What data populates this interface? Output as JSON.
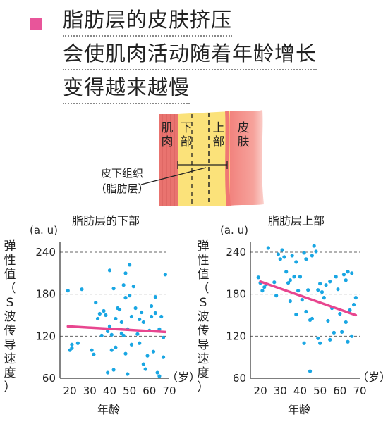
{
  "title": {
    "lines": [
      "脂肪层的皮肤挤压",
      "会使肌肉活动随着年龄增长",
      "变得越来越慢"
    ],
    "marker_color": "#e8559a"
  },
  "diagram": {
    "labels": {
      "muscle": "肌\n肉",
      "lower": "下\n部",
      "upper": "上\n部",
      "skin": "皮\n肤"
    },
    "callout": "皮下组织\n（脂肪层）",
    "colors": {
      "muscle": "#e9736f",
      "fat": "#fbe27a",
      "skin": "#f2837e"
    }
  },
  "chart_data": [
    {
      "type": "scatter",
      "title": "脂肪层的下部",
      "unit_label": "(a. u)",
      "ylabel": "弹性值（S波传导速度）",
      "xlabel": "年龄",
      "xunit": "（岁）",
      "xticks": [
        20,
        30,
        40,
        50,
        60,
        70
      ],
      "yticks": [
        60,
        120,
        180,
        240
      ],
      "xlim": [
        15,
        70
      ],
      "ylim": [
        60,
        250
      ],
      "grid": "horizontal-dashed",
      "point_color": "#19a6e3",
      "trend_color": "#e8468f",
      "trend": {
        "x": [
          19,
          68
        ],
        "y": [
          134,
          126
        ]
      },
      "points": [
        {
          "x": 19,
          "y": 185
        },
        {
          "x": 20,
          "y": 100
        },
        {
          "x": 21,
          "y": 108
        },
        {
          "x": 21,
          "y": 103
        },
        {
          "x": 24,
          "y": 110
        },
        {
          "x": 26,
          "y": 187
        },
        {
          "x": 31,
          "y": 100
        },
        {
          "x": 32,
          "y": 94
        },
        {
          "x": 33,
          "y": 168
        },
        {
          "x": 34,
          "y": 145
        },
        {
          "x": 35,
          "y": 152
        },
        {
          "x": 36,
          "y": 121
        },
        {
          "x": 37,
          "y": 156
        },
        {
          "x": 38,
          "y": 150
        },
        {
          "x": 39,
          "y": 127
        },
        {
          "x": 39,
          "y": 68
        },
        {
          "x": 40,
          "y": 214
        },
        {
          "x": 40,
          "y": 134
        },
        {
          "x": 41,
          "y": 122
        },
        {
          "x": 41,
          "y": 100
        },
        {
          "x": 42,
          "y": 188
        },
        {
          "x": 42,
          "y": 72
        },
        {
          "x": 43,
          "y": 145
        },
        {
          "x": 43,
          "y": 104
        },
        {
          "x": 44,
          "y": 160
        },
        {
          "x": 45,
          "y": 158
        },
        {
          "x": 46,
          "y": 140
        },
        {
          "x": 46,
          "y": 124
        },
        {
          "x": 47,
          "y": 193
        },
        {
          "x": 47,
          "y": 121
        },
        {
          "x": 48,
          "y": 210
        },
        {
          "x": 48,
          "y": 175
        },
        {
          "x": 48,
          "y": 95
        },
        {
          "x": 49,
          "y": 130
        },
        {
          "x": 49,
          "y": 66
        },
        {
          "x": 50,
          "y": 222
        },
        {
          "x": 50,
          "y": 178
        },
        {
          "x": 51,
          "y": 148
        },
        {
          "x": 51,
          "y": 108
        },
        {
          "x": 52,
          "y": 191
        },
        {
          "x": 53,
          "y": 160
        },
        {
          "x": 54,
          "y": 123
        },
        {
          "x": 55,
          "y": 144
        },
        {
          "x": 55,
          "y": 110
        },
        {
          "x": 56,
          "y": 154
        },
        {
          "x": 57,
          "y": 140
        },
        {
          "x": 57,
          "y": 80
        },
        {
          "x": 58,
          "y": 73
        },
        {
          "x": 59,
          "y": 92
        },
        {
          "x": 60,
          "y": 128
        },
        {
          "x": 61,
          "y": 163
        },
        {
          "x": 61,
          "y": 148
        },
        {
          "x": 62,
          "y": 98
        },
        {
          "x": 63,
          "y": 176
        },
        {
          "x": 63,
          "y": 153
        },
        {
          "x": 64,
          "y": 68
        },
        {
          "x": 65,
          "y": 130
        },
        {
          "x": 65,
          "y": 63
        },
        {
          "x": 66,
          "y": 148
        },
        {
          "x": 67,
          "y": 118
        },
        {
          "x": 67,
          "y": 90
        },
        {
          "x": 68,
          "y": 208
        }
      ]
    },
    {
      "type": "scatter",
      "title": "脂肪层上部",
      "unit_label": "(a. u)",
      "ylabel": "弹性值（S波传导速度）",
      "xlabel": "年龄",
      "xunit": "（岁）",
      "xticks": [
        20,
        30,
        40,
        50,
        60,
        70
      ],
      "yticks": [
        60,
        120,
        180,
        240
      ],
      "xlim": [
        15,
        70
      ],
      "ylim": [
        60,
        250
      ],
      "grid": "horizontal-dashed",
      "point_color": "#19a6e3",
      "trend_color": "#e8468f",
      "trend": {
        "x": [
          20,
          68
        ],
        "y": [
          198,
          150
        ]
      },
      "points": [
        {
          "x": 19,
          "y": 204
        },
        {
          "x": 20,
          "y": 196
        },
        {
          "x": 21,
          "y": 185
        },
        {
          "x": 22,
          "y": 190
        },
        {
          "x": 23,
          "y": 194
        },
        {
          "x": 24,
          "y": 246
        },
        {
          "x": 27,
          "y": 197
        },
        {
          "x": 28,
          "y": 178
        },
        {
          "x": 29,
          "y": 237
        },
        {
          "x": 30,
          "y": 230
        },
        {
          "x": 31,
          "y": 243
        },
        {
          "x": 32,
          "y": 233
        },
        {
          "x": 33,
          "y": 212
        },
        {
          "x": 34,
          "y": 196
        },
        {
          "x": 35,
          "y": 200
        },
        {
          "x": 35,
          "y": 170
        },
        {
          "x": 36,
          "y": 235
        },
        {
          "x": 37,
          "y": 205
        },
        {
          "x": 38,
          "y": 226
        },
        {
          "x": 38,
          "y": 151
        },
        {
          "x": 39,
          "y": 185
        },
        {
          "x": 40,
          "y": 205
        },
        {
          "x": 41,
          "y": 172
        },
        {
          "x": 42,
          "y": 239
        },
        {
          "x": 43,
          "y": 230
        },
        {
          "x": 43,
          "y": 155
        },
        {
          "x": 44,
          "y": 186
        },
        {
          "x": 45,
          "y": 143
        },
        {
          "x": 46,
          "y": 235
        },
        {
          "x": 46,
          "y": 145
        },
        {
          "x": 47,
          "y": 249
        },
        {
          "x": 48,
          "y": 241
        },
        {
          "x": 49,
          "y": 186
        },
        {
          "x": 49,
          "y": 117
        },
        {
          "x": 50,
          "y": 195
        },
        {
          "x": 50,
          "y": 110
        },
        {
          "x": 51,
          "y": 183
        },
        {
          "x": 52,
          "y": 175
        },
        {
          "x": 53,
          "y": 193
        },
        {
          "x": 54,
          "y": 142
        },
        {
          "x": 55,
          "y": 198
        },
        {
          "x": 55,
          "y": 115
        },
        {
          "x": 56,
          "y": 160
        },
        {
          "x": 57,
          "y": 125
        },
        {
          "x": 58,
          "y": 205
        },
        {
          "x": 59,
          "y": 187
        },
        {
          "x": 60,
          "y": 152
        },
        {
          "x": 61,
          "y": 126
        },
        {
          "x": 62,
          "y": 208
        },
        {
          "x": 63,
          "y": 200
        },
        {
          "x": 63,
          "y": 140
        },
        {
          "x": 64,
          "y": 212
        },
        {
          "x": 64,
          "y": 112
        },
        {
          "x": 65,
          "y": 157
        },
        {
          "x": 66,
          "y": 210
        },
        {
          "x": 66,
          "y": 120
        },
        {
          "x": 67,
          "y": 165
        },
        {
          "x": 68,
          "y": 175
        },
        {
          "x": 45,
          "y": 70
        },
        {
          "x": 42,
          "y": 110
        }
      ]
    }
  ]
}
